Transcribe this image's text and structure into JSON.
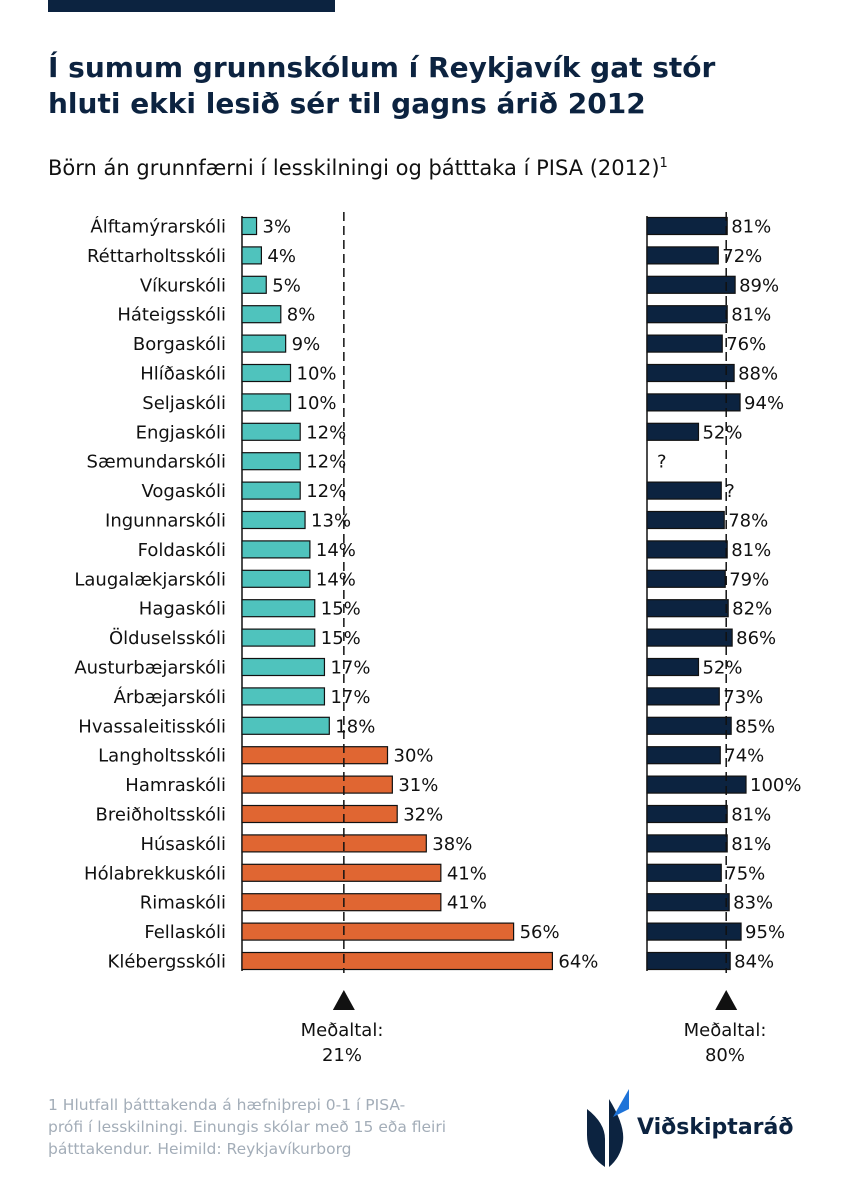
{
  "header": {
    "title_line1": "Í sumum grunnskólum í Reykjavík gat stór",
    "title_line2": "hluti ekki lesið sér til gagns árið 2012",
    "subtitle": "Börn án grunnfærni í lesskilningi og þátttaka í PISA (2012)",
    "subtitle_sup": "1"
  },
  "colors": {
    "brand_navy": "#0c2340",
    "low_group": "#4fc3bd",
    "high_group": "#e06632",
    "participation": "#0c2340",
    "footnote": "#a3adb8"
  },
  "chart_data": [
    {
      "type": "bar",
      "orientation": "horizontal",
      "categories": [
        "Álftamýrarskóli",
        "Réttarholtsskóli",
        "Víkurskóli",
        "Háteigsskóli",
        "Borgaskóli",
        "Hlíðaskóli",
        "Seljaskóli",
        "Engjaskóli",
        "Sæmundarskóli",
        "Vogaskóli",
        "Ingunnarskóli",
        "Foldaskóli",
        "Laugalækjarskóli",
        "Hagaskóli",
        "Ölduselsskóli",
        "Austurbæjarskóli",
        "Árbæjarskóli",
        "Hvassaleitisskóli",
        "Langholtsskóli",
        "Hamraskóli",
        "Breiðholtsskóli",
        "Húsaskóli",
        "Hólabrekkuskóli",
        "Rimaskóli",
        "Fellaskóli",
        "Klébergsskóli"
      ],
      "values": [
        3,
        4,
        5,
        8,
        9,
        10,
        10,
        12,
        12,
        12,
        13,
        14,
        14,
        15,
        15,
        17,
        17,
        18,
        30,
        31,
        32,
        38,
        41,
        41,
        56,
        64
      ],
      "labels": [
        "3%",
        "4%",
        "5%",
        "8%",
        "9%",
        "10%",
        "10%",
        "12%",
        "12%",
        "12%",
        "13%",
        "14%",
        "14%",
        "15%",
        "15%",
        "17%",
        "17%",
        "18%",
        "30%",
        "31%",
        "32%",
        "38%",
        "41%",
        "41%",
        "56%",
        "64%"
      ],
      "group_split_index": 18,
      "unit": "%",
      "average": 21,
      "average_label": "Meðaltal:",
      "average_value_label": "21%",
      "axis_visible": false,
      "grid": false
    },
    {
      "type": "bar",
      "orientation": "horizontal",
      "categories": [
        "Álftamýrarskóli",
        "Réttarholtsskóli",
        "Víkurskóli",
        "Háteigsskóli",
        "Borgaskóli",
        "Hlíðaskóli",
        "Seljaskóli",
        "Engjaskóli",
        "Sæmundarskóli",
        "Vogaskóli",
        "Ingunnarskóli",
        "Foldaskóli",
        "Laugalækjarskóli",
        "Hagaskóli",
        "Ölduselsskóli",
        "Austurbæjarskóli",
        "Árbæjarskóli",
        "Hvassaleitisskóli",
        "Langholtsskóli",
        "Hamraskóli",
        "Breiðholtsskóli",
        "Húsaskóli",
        "Hólabrekkuskóli",
        "Rimaskóli",
        "Fellaskóli",
        "Klébergsskóli"
      ],
      "values": [
        81,
        72,
        89,
        81,
        76,
        88,
        94,
        52,
        null,
        75,
        78,
        81,
        79,
        82,
        86,
        52,
        73,
        85,
        74,
        100,
        81,
        81,
        75,
        83,
        95,
        84
      ],
      "labels": [
        "81%",
        "72%",
        "89%",
        "81%",
        "76%",
        "88%",
        "94%",
        "52%",
        "?",
        "?",
        "78%",
        "81%",
        "79%",
        "82%",
        "86%",
        "52%",
        "73%",
        "85%",
        "74%",
        "100%",
        "81%",
        "81%",
        "75%",
        "83%",
        "95%",
        "84%"
      ],
      "unit": "%",
      "average": 80,
      "average_label": "Meðaltal:",
      "average_value_label": "80%",
      "axis_visible": false,
      "grid": false
    }
  ],
  "footnote": {
    "line1": "1 Hlutfall þátttakenda á hæfniþrepi 0-1 í PISA-",
    "line2": "prófi í lesskilningi. Einungis skólar með 15 eða fleiri",
    "line3": "þátttakendur. Heimild: Reykjavíkurborg"
  },
  "logo": {
    "text": "Viðskiptaráð"
  }
}
